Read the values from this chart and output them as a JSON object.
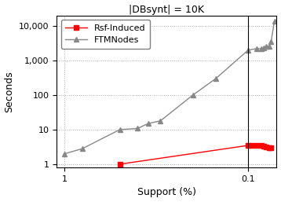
{
  "title": "|DBsynt| = 10K",
  "xlabel": "Support (%)",
  "ylabel": "Seconds",
  "xlim": [
    1.1,
    0.07
  ],
  "ylim": [
    0.8,
    20000
  ],
  "ftm_x": [
    1.0,
    0.8,
    0.5,
    0.4,
    0.35,
    0.3,
    0.2,
    0.15,
    0.1,
    0.09,
    0.085,
    0.082,
    0.08,
    0.077,
    0.075,
    0.072
  ],
  "ftm_y": [
    2.0,
    2.8,
    10.0,
    10.8,
    15.0,
    18.0,
    100.0,
    300.0,
    2000.0,
    2200.0,
    2200.0,
    2300.0,
    2500.0,
    2600.0,
    3500.0,
    14000.0
  ],
  "rsf_x": [
    0.5,
    0.1,
    0.095,
    0.09,
    0.085,
    0.082,
    0.08,
    0.077,
    0.075
  ],
  "rsf_y": [
    1.0,
    3.5,
    3.5,
    3.5,
    3.5,
    3.3,
    3.2,
    3.0,
    3.0
  ],
  "ftm_color": "#888888",
  "rsf_color": "#ff0000",
  "legend_labels": [
    "Rsf-Induced",
    "FTMNodes"
  ],
  "grid_color": "#b0b0b0",
  "vline_x": 0.1,
  "xticks": [
    1,
    0.1
  ],
  "yticks": [
    1,
    10,
    100,
    1000,
    10000
  ]
}
